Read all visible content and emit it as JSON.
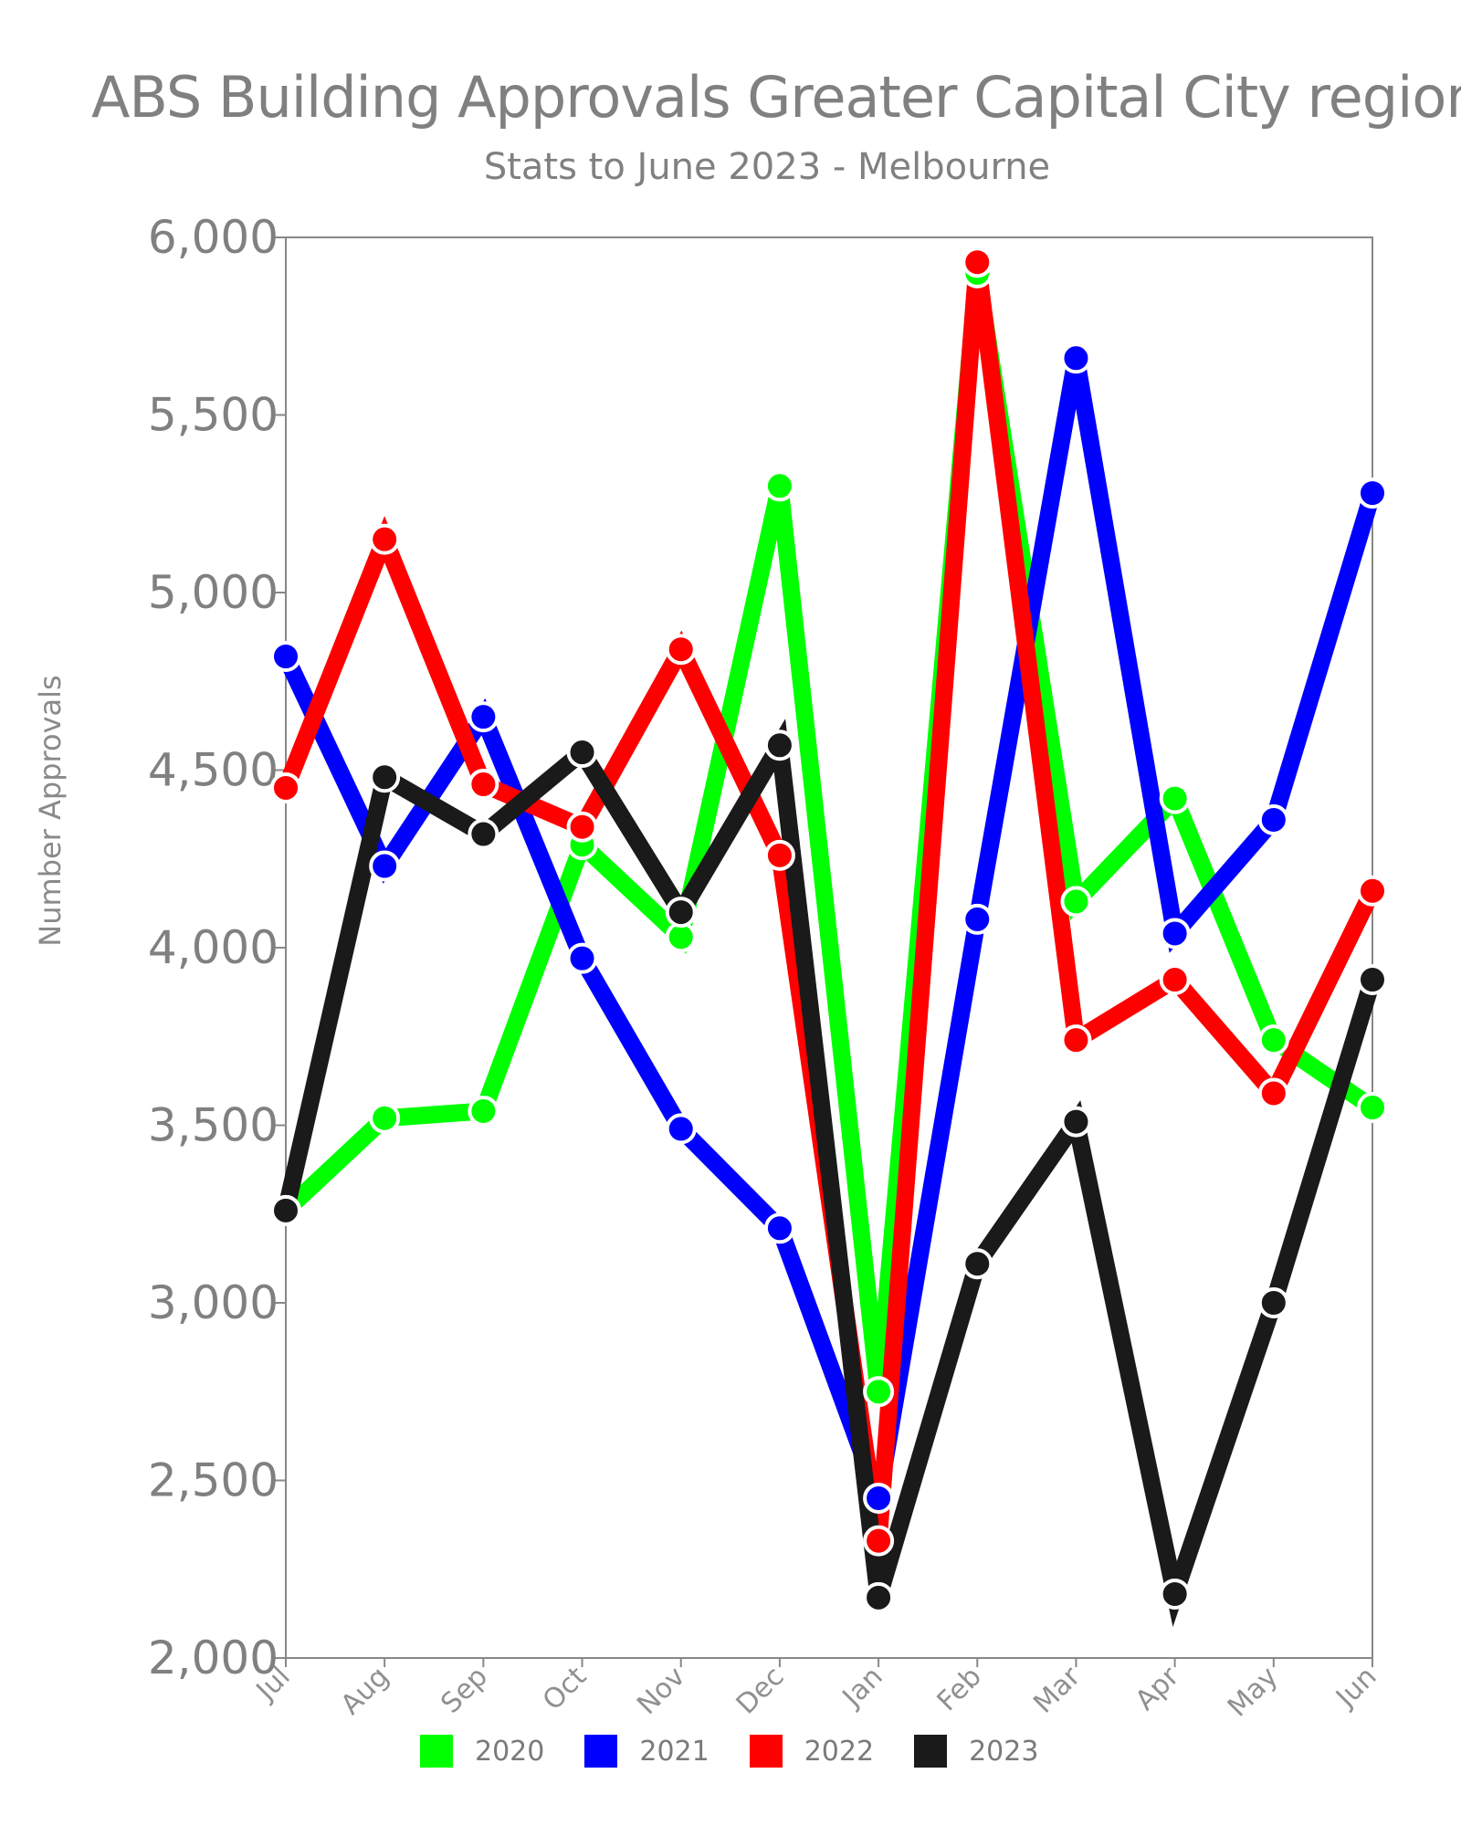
{
  "title": "ABS Building Approvals Greater Capital City regions",
  "subtitle": "Stats to June 2023 - Melbourne",
  "chart_data": {
    "type": "line",
    "title": "ABS Building Approvals Greater Capital City regions",
    "subtitle": "Stats to June 2023 - Melbourne",
    "ylabel": "Number Approvals",
    "xlabel": "",
    "ylim": [
      2000,
      6000
    ],
    "yticks": [
      2000,
      2500,
      3000,
      3500,
      4000,
      4500,
      5000,
      5500,
      6000
    ],
    "ytick_labels": [
      "2,000",
      "2,500",
      "3,000",
      "3,500",
      "4,000",
      "4,500",
      "5,000",
      "5,500",
      "6,000"
    ],
    "categories": [
      "Jul",
      "Aug",
      "Sep",
      "Oct",
      "Nov",
      "Dec",
      "Jan",
      "Feb",
      "Mar",
      "Apr",
      "May",
      "Jun"
    ],
    "grid": false,
    "legend_position": "bottom",
    "series": [
      {
        "name": "2020",
        "color": "#00ff00",
        "values": [
          3260,
          3520,
          3540,
          4290,
          4030,
          5300,
          2750,
          5900,
          4130,
          4420,
          3740,
          3550
        ]
      },
      {
        "name": "2021",
        "color": "#0000ff",
        "values": [
          4820,
          4230,
          4650,
          3970,
          3490,
          3210,
          2450,
          4080,
          5660,
          4040,
          4360,
          5280
        ]
      },
      {
        "name": "2022",
        "color": "#ff0000",
        "values": [
          4450,
          5150,
          4460,
          4340,
          4840,
          4260,
          2330,
          5930,
          3740,
          3910,
          3590,
          4160
        ]
      },
      {
        "name": "2023",
        "color": "#1a1a1a",
        "values": [
          3260,
          4480,
          4320,
          4550,
          4100,
          4570,
          2170,
          3110,
          3510,
          2180,
          3000,
          3910
        ]
      }
    ]
  }
}
